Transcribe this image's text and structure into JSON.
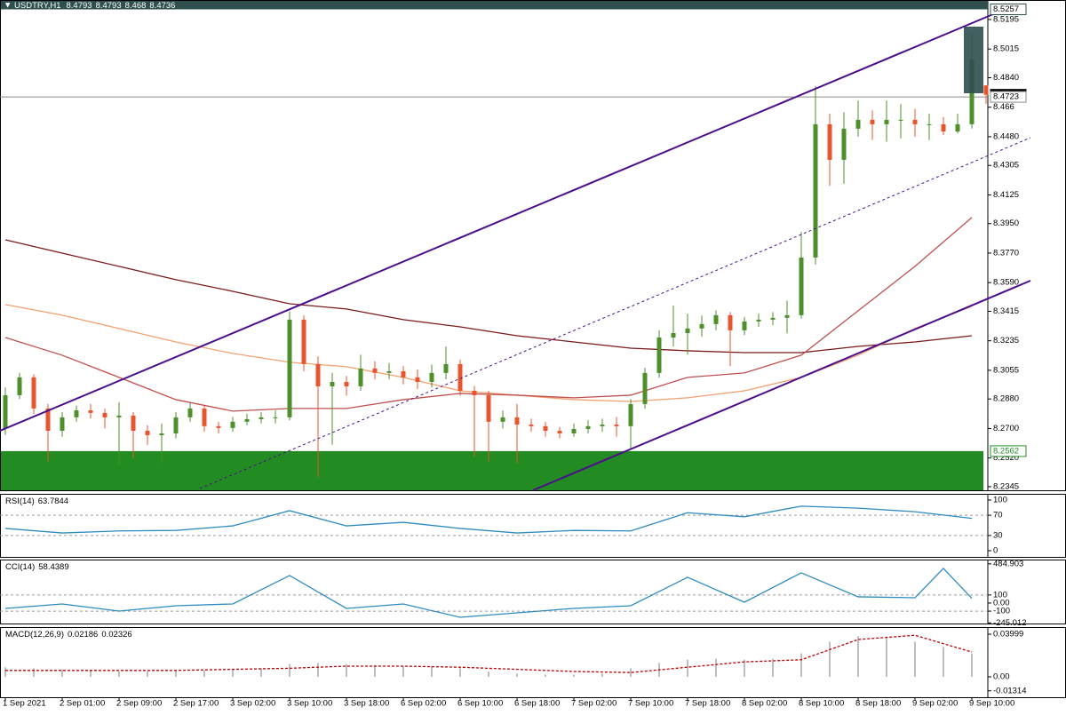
{
  "chart_data": [
    {
      "type": "candlestick",
      "title": "USDTRY,H1",
      "xlim": [
        -0.375,
        69.125
      ],
      "ylim": [
        8.2323,
        8.5314
      ],
      "open": [
        8.27,
        8.2903,
        8.3012,
        8.2822,
        8.2686,
        8.2768,
        8.2811,
        8.2795,
        8.2768,
        8.2779,
        8.2686,
        8.2659,
        8.267,
        8.2768,
        8.2822,
        8.2714,
        8.2703,
        8.2741,
        8.2757,
        8.2768,
        8.2768,
        8.3364,
        8.3093,
        8.2957,
        8.2984,
        8.2957,
        8.3066,
        8.3039,
        8.3049,
        8.3012,
        8.2984,
        8.3039,
        8.3093,
        8.293,
        8.2903,
        8.2741,
        8.2768,
        8.2724,
        8.2714,
        8.2686,
        8.267,
        8.2697,
        8.2714,
        8.2724,
        8.2714,
        8.2849,
        8.3039,
        8.3255,
        8.3282,
        8.331,
        8.3337,
        8.3391,
        8.3299,
        8.3353,
        8.3364,
        8.3375,
        8.3391,
        8.3743,
        8.4556,
        8.4339,
        8.4529,
        8.4583,
        8.4556,
        8.4583,
        8.4583,
        8.4556,
        8.4556,
        8.4512,
        8.4556,
        8.4793
      ],
      "high": [
        8.295,
        8.304,
        8.303,
        8.285,
        8.28,
        8.284,
        8.285,
        8.282,
        8.286,
        8.28,
        8.272,
        8.273,
        8.28,
        8.286,
        8.284,
        8.274,
        8.277,
        8.279,
        8.28,
        8.281,
        8.3415,
        8.339,
        8.314,
        8.304,
        8.302,
        8.315,
        8.311,
        8.31,
        8.308,
        8.306,
        8.309,
        8.32,
        8.312,
        8.296,
        8.293,
        8.281,
        8.285,
        8.276,
        8.274,
        8.271,
        8.273,
        8.275,
        8.276,
        8.277,
        8.288,
        8.307,
        8.33,
        8.345,
        8.34,
        8.339,
        8.342,
        8.341,
        8.338,
        8.34,
        8.341,
        8.348,
        8.39,
        8.479,
        8.462,
        8.463,
        8.47,
        8.464,
        8.47,
        8.468,
        8.465,
        8.462,
        8.46,
        8.462,
        8.511,
        8.4793
      ],
      "low": [
        8.266,
        8.288,
        8.279,
        8.25,
        8.265,
        8.274,
        8.276,
        8.27,
        8.248,
        8.252,
        8.26,
        8.249,
        8.264,
        8.274,
        8.268,
        8.267,
        8.268,
        8.272,
        8.273,
        8.273,
        8.275,
        8.305,
        8.2405,
        8.26,
        8.29,
        8.293,
        8.3,
        8.3,
        8.297,
        8.294,
        8.295,
        8.3,
        8.29,
        8.253,
        8.25,
        8.27,
        8.249,
        8.268,
        8.265,
        8.264,
        8.265,
        8.267,
        8.268,
        8.265,
        8.258,
        8.282,
        8.301,
        8.32,
        8.315,
        8.326,
        8.33,
        8.308,
        8.327,
        8.332,
        8.333,
        8.328,
        8.337,
        8.37,
        8.418,
        8.4193,
        8.448,
        8.446,
        8.445,
        8.447,
        8.448,
        8.446,
        8.449,
        8.45,
        8.453,
        8.468
      ],
      "close": [
        8.2903,
        8.3012,
        8.2822,
        8.2686,
        8.2768,
        8.2811,
        8.2795,
        8.2768,
        8.2779,
        8.2686,
        8.2659,
        8.267,
        8.2768,
        8.2822,
        8.2714,
        8.2703,
        8.2741,
        8.2757,
        8.2768,
        8.2768,
        8.3364,
        8.3093,
        8.2957,
        8.2984,
        8.2957,
        8.3066,
        8.3039,
        8.3049,
        8.3012,
        8.2984,
        8.3039,
        8.3093,
        8.293,
        8.2903,
        8.2741,
        8.2768,
        8.2724,
        8.2714,
        8.2686,
        8.267,
        8.2697,
        8.2714,
        8.2724,
        8.2714,
        8.2849,
        8.3039,
        8.3255,
        8.3282,
        8.331,
        8.3337,
        8.3391,
        8.3299,
        8.3353,
        8.3364,
        8.3375,
        8.3391,
        8.3743,
        8.4556,
        8.4339,
        8.4529,
        8.4583,
        8.4556,
        8.4583,
        8.4583,
        8.4556,
        8.4556,
        8.4512,
        8.4556,
        8.495,
        8.4736
      ],
      "up_color": "#4e8f2c",
      "down_color": "#e8552d",
      "overlays": [
        {
          "color": "#7b1a1a",
          "x": [
            0,
            4,
            8,
            12,
            16,
            20,
            24,
            28,
            32,
            36,
            40,
            44,
            48,
            52,
            56,
            60,
            64,
            68
          ],
          "values": [
            8.3851,
            8.377,
            8.3689,
            8.3608,
            8.3537,
            8.3461,
            8.3429,
            8.3364,
            8.332,
            8.3266,
            8.3228,
            8.319,
            8.3174,
            8.3163,
            8.3163,
            8.3201,
            8.3228,
            8.3266
          ]
        },
        {
          "color": "#f4a070",
          "x": [
            0,
            4,
            8,
            12,
            16,
            20,
            24,
            28,
            32,
            36,
            40,
            44,
            48,
            52,
            56,
            60,
            64,
            68
          ],
          "values": [
            8.3456,
            8.3391,
            8.331,
            8.3228,
            8.3158,
            8.3104,
            8.3077,
            8.3012,
            8.293,
            8.2903,
            8.2876,
            8.2865,
            8.2887,
            8.293,
            8.3012,
            8.3147,
            8.331,
            8.3445
          ]
        },
        {
          "color": "#c0504d",
          "x": [
            0,
            4,
            8,
            12,
            16,
            20,
            24,
            28,
            32,
            36,
            40,
            44,
            48,
            52,
            56,
            60,
            64,
            68
          ],
          "values": [
            8.3255,
            8.3147,
            8.3012,
            8.2876,
            8.2806,
            8.2822,
            8.2822,
            8.2876,
            8.2914,
            8.2903,
            8.2887,
            8.2903,
            8.3012,
            8.3039,
            8.3147,
            8.3418,
            8.3689,
            8.3987
          ]
        }
      ],
      "band_level": 8.5257,
      "hline": 8.4723,
      "zone_top": 8.2562,
      "zone_color": "#228b22",
      "yticks": [
        8.5195,
        8.5015,
        {
          "value": 8.484,
          "label": "8.4840"
        },
        8.466,
        {
          "value": 8.448,
          "label": "8.4480"
        },
        8.4305,
        8.4125,
        {
          "value": 8.395,
          "label": "8.3950"
        },
        {
          "value": 8.377,
          "label": "8.3770"
        },
        {
          "value": 8.359,
          "label": "8.3590"
        },
        8.3415,
        8.3235,
        8.3055,
        {
          "value": 8.288,
          "label": "8.2880"
        },
        {
          "value": 8.27,
          "label": "8.2700"
        },
        {
          "value": 8.252,
          "label": "8.2520"
        },
        8.2345
      ]
    },
    {
      "type": "line",
      "name": "RSI(14)",
      "xlim": [
        -0.375,
        69.125
      ],
      "ylim": [
        -12.3,
        112.3
      ],
      "color": "#2e8bc0",
      "x": [
        0,
        4,
        8,
        12,
        16,
        20,
        24,
        28,
        32,
        36,
        40,
        44,
        48,
        52,
        56,
        60,
        64,
        68
      ],
      "values": [
        44,
        35,
        39,
        40,
        49,
        79,
        49,
        56,
        44,
        35,
        40,
        39,
        75,
        67,
        88,
        84,
        77,
        63.7844
      ],
      "levels": [
        70,
        30
      ],
      "yticks": [
        100,
        70,
        30,
        0
      ]
    },
    {
      "type": "line",
      "name": "CCI(14)",
      "xlim": [
        -0.375,
        69.125
      ],
      "ylim": [
        -253,
        538
      ],
      "color": "#2e8bc0",
      "x": [
        0,
        4,
        8,
        12,
        16,
        20,
        24,
        28,
        32,
        36,
        40,
        44,
        48,
        52,
        56,
        60,
        64,
        66,
        68
      ],
      "values": [
        -66,
        -11,
        -99,
        -33,
        -11,
        341,
        -66,
        -11,
        -176,
        -121,
        -66,
        -33,
        319,
        11,
        374,
        77,
        66,
        429,
        58.4389
      ],
      "levels": [
        100,
        -100
      ],
      "yticks": [
        484.903,
        100,
        {
          "value": 0,
          "label": "0.00"
        },
        -100,
        -245.012
      ]
    },
    {
      "type": "macd",
      "name": "MACD(12,26,9)",
      "xlim": [
        -0.375,
        69.125
      ],
      "ylim": [
        -0.0192,
        0.0467
      ],
      "series": [
        {
          "style": "histogram",
          "color": "#a8a8a8",
          "x": [
            0,
            2,
            4,
            6,
            8,
            10,
            12,
            14,
            16,
            18,
            20,
            22,
            24,
            26,
            28,
            30,
            32,
            34,
            36,
            38,
            40,
            42,
            44,
            46,
            48,
            50,
            52,
            54,
            56,
            58,
            60,
            62,
            64,
            66,
            68
          ],
          "values": [
            0.009,
            0.008,
            0.007,
            0.006,
            0.005,
            0.005,
            0.006,
            0.006,
            0.007,
            0.008,
            0.012,
            0.013,
            0.012,
            0.011,
            0.01,
            0.01,
            0.008,
            0.005,
            0.003,
            0.002,
            0.002,
            0.003,
            0.008,
            0.013,
            0.016,
            0.017,
            0.016,
            0.017,
            0.022,
            0.033,
            0.038,
            0.037,
            0.033,
            0.028,
            0.02186
          ]
        },
        {
          "style": "dashed",
          "color": "#c00000",
          "x": [
            0,
            4,
            8,
            12,
            16,
            20,
            24,
            28,
            32,
            36,
            40,
            44,
            48,
            52,
            56,
            60,
            64,
            68
          ],
          "values": [
            0.006,
            0.006,
            0.006,
            0.006,
            0.007,
            0.008,
            0.01,
            0.01,
            0.009,
            0.007,
            0.005,
            0.004,
            0.009,
            0.014,
            0.016,
            0.035,
            0.039,
            0.02326
          ]
        }
      ],
      "yticks": [
        0.03999,
        {
          "value": 0,
          "label": "0.00"
        },
        -0.01314
      ],
      "xticks": [
        {
          "value": 0,
          "label": "1 Sep 2021"
        },
        {
          "value": 4,
          "label": "2 Sep 01:00"
        },
        {
          "value": 8,
          "label": "2 Sep 09:00"
        },
        {
          "value": 12,
          "label": "2 Sep 17:00"
        },
        {
          "value": 16,
          "label": "3 Sep 02:00"
        },
        {
          "value": 20,
          "label": "3 Sep 10:00"
        },
        {
          "value": 24,
          "label": "3 Sep 18:00"
        },
        {
          "value": 28,
          "label": "6 Sep 02:00"
        },
        {
          "value": 32,
          "label": "6 Sep 10:00"
        },
        {
          "value": 36,
          "label": "6 Sep 18:00"
        },
        {
          "value": 40,
          "label": "7 Sep 02:00"
        },
        {
          "value": 44,
          "label": "7 Sep 10:00"
        },
        {
          "value": 48,
          "label": "7 Sep 18:00"
        },
        {
          "value": 52,
          "label": "8 Sep 02:00"
        },
        {
          "value": 56,
          "label": "8 Sep 10:00"
        },
        {
          "value": 60,
          "label": "8 Sep 18:00"
        },
        {
          "value": 64,
          "label": "9 Sep 02:00"
        },
        {
          "value": 68,
          "label": "9 Sep 10:00"
        }
      ]
    }
  ]
}
